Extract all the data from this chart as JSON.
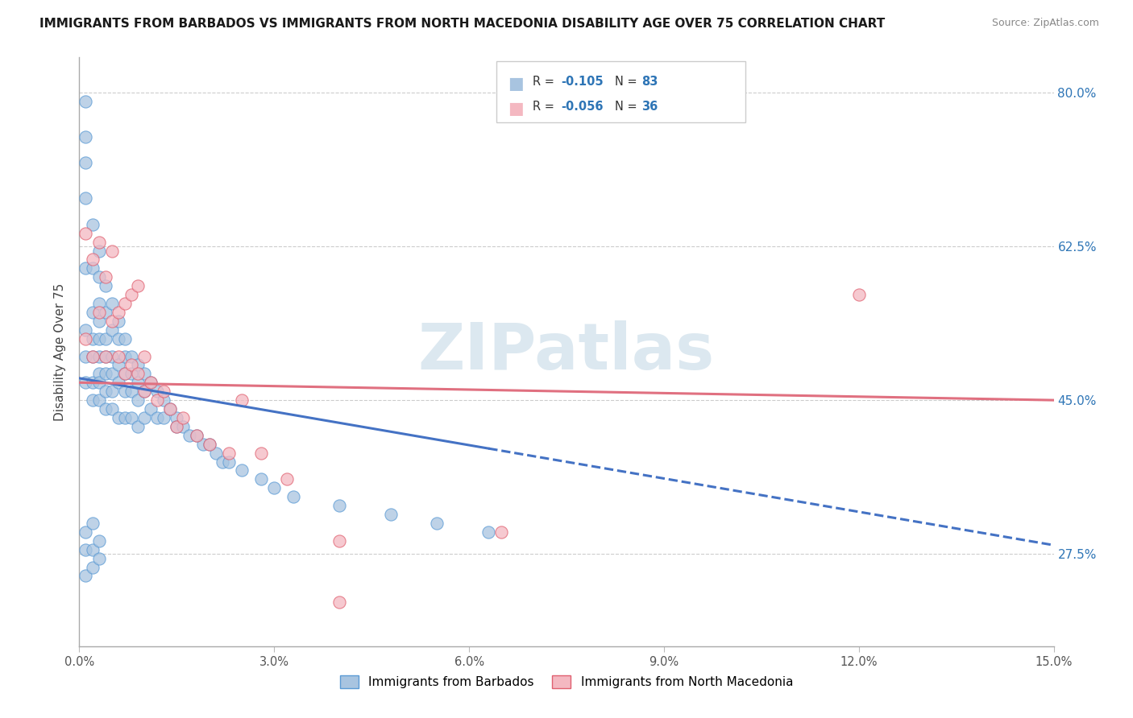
{
  "title": "IMMIGRANTS FROM BARBADOS VS IMMIGRANTS FROM NORTH MACEDONIA DISABILITY AGE OVER 75 CORRELATION CHART",
  "source": "Source: ZipAtlas.com",
  "ylabel": "Disability Age Over 75",
  "ytick_values": [
    0.275,
    0.45,
    0.625,
    0.8
  ],
  "ytick_labels": [
    "27.5%",
    "45.0%",
    "62.5%",
    "80.0%"
  ],
  "xlim": [
    0.0,
    0.15
  ],
  "ylim": [
    0.17,
    0.84
  ],
  "xtick_values": [
    0.0,
    0.03,
    0.06,
    0.09,
    0.12,
    0.15
  ],
  "xtick_labels": [
    "0.0%",
    "3.0%",
    "6.0%",
    "9.0%",
    "12.0%",
    "15.0%"
  ],
  "legend_r1": "R = ",
  "legend_v1": "-0.105",
  "legend_n1_label": "N = ",
  "legend_n1_val": "83",
  "legend_r2": "R = ",
  "legend_v2": "-0.056",
  "legend_n2_label": "N = ",
  "legend_n2_val": "36",
  "color_barbados_fill": "#a8c4e0",
  "color_barbados_edge": "#5b9bd5",
  "color_macedonia_fill": "#f4b8c1",
  "color_macedonia_edge": "#e06070",
  "color_line_barbados": "#4472c4",
  "color_line_macedonia": "#e07080",
  "color_text_blue": "#2e75b6",
  "watermark_color": "#dce8f0",
  "barbados_x": [
    0.001,
    0.001,
    0.001,
    0.001,
    0.001,
    0.001,
    0.001,
    0.001,
    0.002,
    0.002,
    0.002,
    0.002,
    0.002,
    0.002,
    0.002,
    0.003,
    0.003,
    0.003,
    0.003,
    0.003,
    0.003,
    0.003,
    0.003,
    0.003,
    0.004,
    0.004,
    0.004,
    0.004,
    0.004,
    0.004,
    0.004,
    0.005,
    0.005,
    0.005,
    0.005,
    0.005,
    0.005,
    0.006,
    0.006,
    0.006,
    0.006,
    0.006,
    0.007,
    0.007,
    0.007,
    0.007,
    0.007,
    0.008,
    0.008,
    0.008,
    0.008,
    0.009,
    0.009,
    0.009,
    0.009,
    0.01,
    0.01,
    0.01,
    0.011,
    0.011,
    0.012,
    0.012,
    0.013,
    0.013,
    0.014,
    0.015,
    0.015,
    0.016,
    0.017,
    0.018,
    0.019,
    0.02,
    0.021,
    0.022,
    0.023,
    0.025,
    0.028,
    0.03,
    0.033,
    0.04,
    0.048,
    0.055,
    0.063
  ],
  "barbados_y": [
    0.79,
    0.75,
    0.72,
    0.68,
    0.6,
    0.53,
    0.5,
    0.47,
    0.65,
    0.6,
    0.55,
    0.52,
    0.5,
    0.47,
    0.45,
    0.62,
    0.59,
    0.56,
    0.54,
    0.52,
    0.5,
    0.48,
    0.47,
    0.45,
    0.58,
    0.55,
    0.52,
    0.5,
    0.48,
    0.46,
    0.44,
    0.56,
    0.53,
    0.5,
    0.48,
    0.46,
    0.44,
    0.54,
    0.52,
    0.49,
    0.47,
    0.43,
    0.52,
    0.5,
    0.48,
    0.46,
    0.43,
    0.5,
    0.48,
    0.46,
    0.43,
    0.49,
    0.47,
    0.45,
    0.42,
    0.48,
    0.46,
    0.43,
    0.47,
    0.44,
    0.46,
    0.43,
    0.45,
    0.43,
    0.44,
    0.43,
    0.42,
    0.42,
    0.41,
    0.41,
    0.4,
    0.4,
    0.39,
    0.38,
    0.38,
    0.37,
    0.36,
    0.35,
    0.34,
    0.33,
    0.32,
    0.31,
    0.3
  ],
  "barbados_lowx": [
    0.001,
    0.001,
    0.001,
    0.002,
    0.002,
    0.002,
    0.003,
    0.003
  ],
  "barbados_lowy": [
    0.25,
    0.28,
    0.3,
    0.26,
    0.28,
    0.31,
    0.27,
    0.29
  ],
  "macedonia_x": [
    0.001,
    0.001,
    0.002,
    0.002,
    0.003,
    0.003,
    0.004,
    0.004,
    0.005,
    0.005,
    0.006,
    0.006,
    0.007,
    0.007,
    0.008,
    0.008,
    0.009,
    0.009,
    0.01,
    0.01,
    0.011,
    0.012,
    0.013,
    0.014,
    0.015,
    0.016,
    0.018,
    0.02,
    0.023,
    0.025,
    0.028,
    0.032,
    0.04,
    0.065,
    0.12,
    0.04
  ],
  "macedonia_y": [
    0.64,
    0.52,
    0.61,
    0.5,
    0.63,
    0.55,
    0.59,
    0.5,
    0.62,
    0.54,
    0.55,
    0.5,
    0.56,
    0.48,
    0.57,
    0.49,
    0.58,
    0.48,
    0.5,
    0.46,
    0.47,
    0.45,
    0.46,
    0.44,
    0.42,
    0.43,
    0.41,
    0.4,
    0.39,
    0.45,
    0.39,
    0.36,
    0.29,
    0.3,
    0.57,
    0.22
  ],
  "trend_barbados_x0": 0.0,
  "trend_barbados_y0": 0.475,
  "trend_barbados_x1": 0.063,
  "trend_barbados_y1": 0.395,
  "trend_barbados_dash_x0": 0.063,
  "trend_barbados_dash_y0": 0.395,
  "trend_barbados_dash_x1": 0.15,
  "trend_barbados_dash_y1": 0.285,
  "trend_macedonia_x0": 0.0,
  "trend_macedonia_y0": 0.47,
  "trend_macedonia_x1": 0.15,
  "trend_macedonia_y1": 0.45
}
